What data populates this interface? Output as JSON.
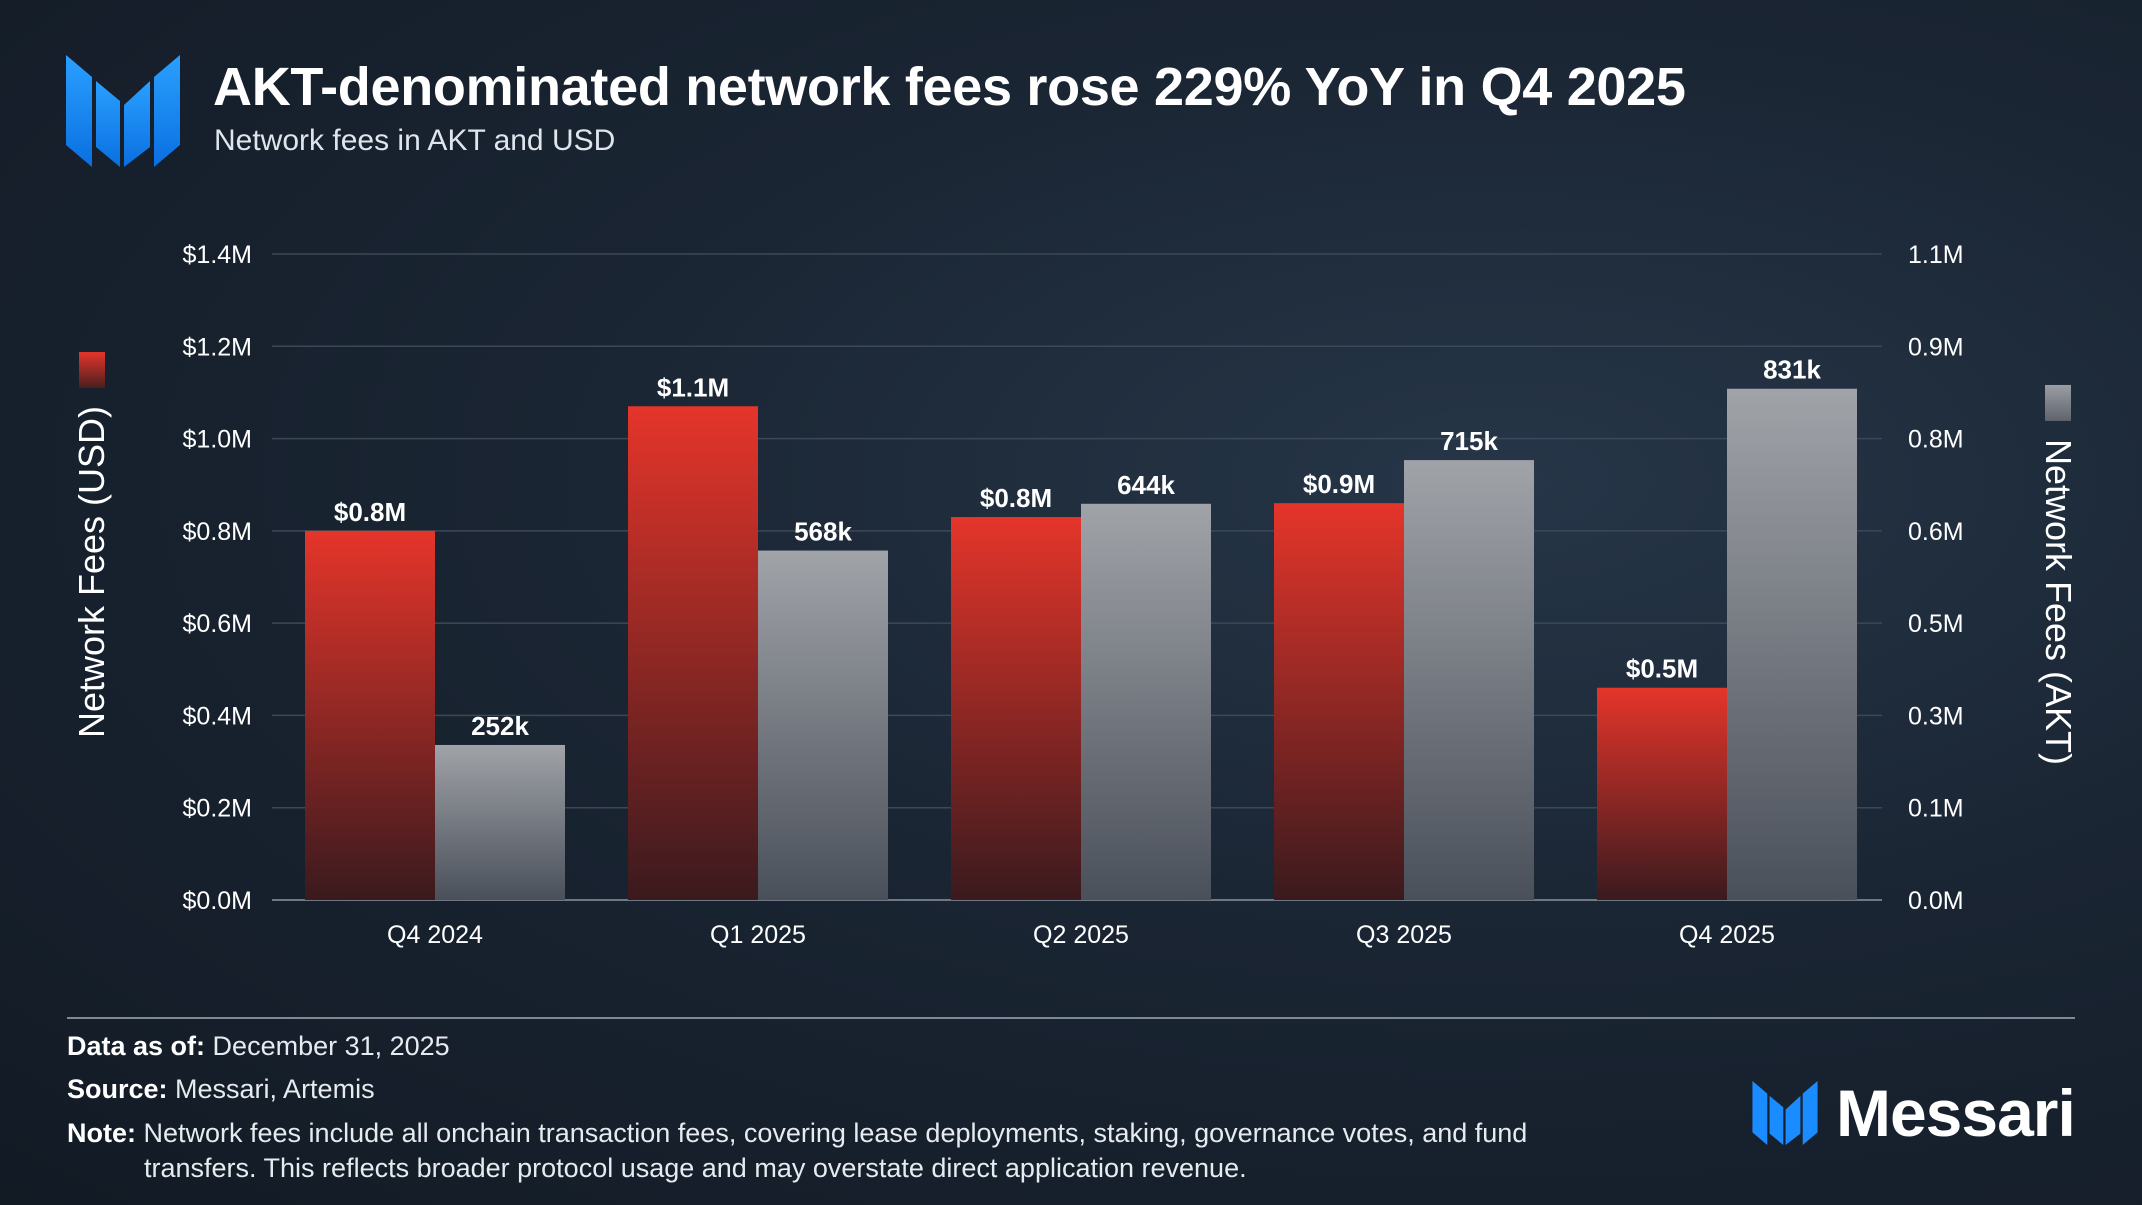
{
  "header": {
    "title": "AKT-denominated network fees rose 229% YoY in Q4 2025",
    "subtitle": "Network fees in AKT and USD"
  },
  "colors": {
    "usd_top": "#e5352a",
    "usd_bottom": "#3a1a1e",
    "akt_top": "#a0a3a8",
    "akt_bottom": "#4a505a",
    "brand_blue": "#1a8cff"
  },
  "chart_data": {
    "type": "bar",
    "title": "AKT-denominated network fees rose 229% YoY in Q4 2025",
    "subtitle": "Network fees in AKT and USD",
    "categories": [
      "Q4 2024",
      "Q1 2025",
      "Q2 2025",
      "Q3 2025",
      "Q4 2025"
    ],
    "series": [
      {
        "name": "Network Fees (USD)",
        "axis": "left",
        "values": [
          0.8,
          1.07,
          0.83,
          0.86,
          0.46
        ],
        "labels": [
          "$0.8M",
          "$1.1M",
          "$0.8M",
          "$0.9M",
          "$0.5M"
        ]
      },
      {
        "name": "Network Fees (AKT)",
        "axis": "right",
        "values": [
          252000,
          568000,
          644000,
          715000,
          831000
        ],
        "labels": [
          "252k",
          "568k",
          "644k",
          "715k",
          "831k"
        ]
      }
    ],
    "left_axis": {
      "label": "Network Fees (USD)",
      "ylim": [
        0,
        1.4
      ],
      "ticks": [
        0,
        0.2,
        0.4,
        0.6,
        0.8,
        1.0,
        1.2,
        1.4
      ],
      "tick_labels": [
        "$0.0M",
        "$0.2M",
        "$0.4M",
        "$0.6M",
        "$0.8M",
        "$1.0M",
        "$1.2M",
        "$1.4M"
      ]
    },
    "right_axis": {
      "label": "Network Fees (AKT)",
      "ylim": [
        0,
        1050000
      ],
      "ticks": [
        0,
        150000,
        300000,
        450000,
        600000,
        750000,
        900000,
        1050000
      ],
      "tick_labels": [
        "0.0M",
        "0.1M",
        "0.3M",
        "0.5M",
        "0.6M",
        "0.8M",
        "0.9M",
        "1.1M"
      ]
    },
    "grid": true
  },
  "footer": {
    "data_as_of_label": "Data as of:",
    "data_as_of_value": " December 31, 2025",
    "source_label": "Source:",
    "source_value": " Messari, Artemis",
    "note_label": "Note:",
    "note_line1": " Network fees include all onchain transaction fees, covering lease deployments, staking, governance votes, and fund",
    "note_line2": "transfers. This reflects broader protocol usage and may overstate direct application revenue.",
    "brand": "Messari"
  }
}
